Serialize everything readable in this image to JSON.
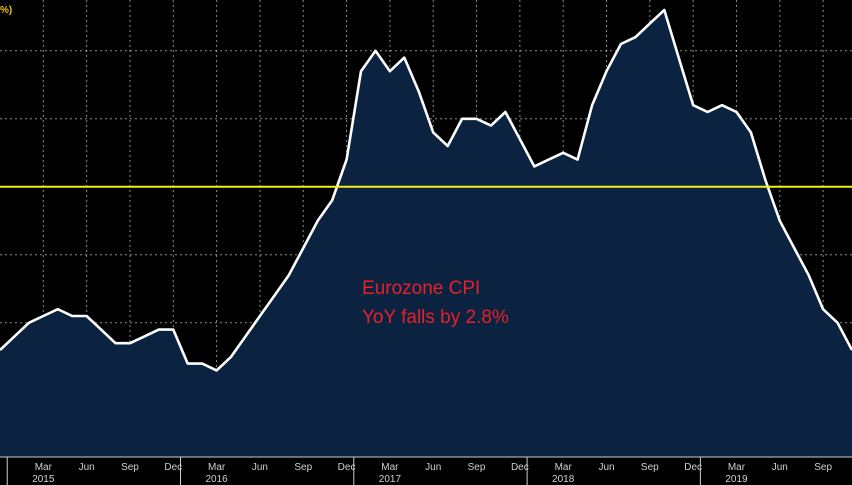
{
  "corner_label": "%)",
  "annotation": {
    "line1": "Eurozone CPI",
    "line2": "YoY falls by 2.8%"
  },
  "colors": {
    "background": "#000000",
    "area_fill": "#0b2340",
    "line": "#ffffff",
    "grid": "#ffffff",
    "reference_line": "#f2ef1a",
    "annotation": "#e8202a",
    "tick_label": "#d0d0d0"
  },
  "chart_data": {
    "type": "area",
    "title": "",
    "xlabel": "",
    "ylabel": "",
    "grid": true,
    "x_tick_labels": [
      {
        "month": "2015-03",
        "label": "Mar",
        "year": "2015"
      },
      {
        "month": "2015-06",
        "label": "Jun"
      },
      {
        "month": "2015-09",
        "label": "Sep"
      },
      {
        "month": "2015-12",
        "label": "Dec"
      },
      {
        "month": "2016-03",
        "label": "Mar",
        "year": "2016"
      },
      {
        "month": "2016-06",
        "label": "Jun"
      },
      {
        "month": "2016-09",
        "label": "Sep"
      },
      {
        "month": "2016-12",
        "label": "Dec"
      },
      {
        "month": "2017-03",
        "label": "Mar",
        "year": "2017"
      },
      {
        "month": "2017-06",
        "label": "Jun"
      },
      {
        "month": "2017-09",
        "label": "Sep"
      },
      {
        "month": "2017-12",
        "label": "Dec"
      },
      {
        "month": "2018-03",
        "label": "Mar",
        "year": "2018"
      },
      {
        "month": "2018-06",
        "label": "Jun"
      },
      {
        "month": "2018-09",
        "label": "Sep"
      },
      {
        "month": "2018-12",
        "label": "Dec"
      },
      {
        "month": "2019-03",
        "label": "Mar",
        "year": "2019"
      },
      {
        "month": "2019-06",
        "label": "Jun"
      },
      {
        "month": "2019-09",
        "label": "Sep"
      }
    ],
    "x_range": [
      "2014-12",
      "2019-11"
    ],
    "y_range": [
      -0.7,
      2.3
    ],
    "reference_line_y": 1.0,
    "series": [
      {
        "x": [
          "2014-12",
          "2015-01",
          "2015-02",
          "2015-03",
          "2015-04",
          "2015-05",
          "2015-06",
          "2015-07",
          "2015-08",
          "2015-09",
          "2015-10",
          "2015-11",
          "2015-12",
          "2016-01",
          "2016-02",
          "2016-03",
          "2016-04",
          "2016-05",
          "2016-06",
          "2016-07",
          "2016-08",
          "2016-09",
          "2016-10",
          "2016-11",
          "2016-12",
          "2017-01",
          "2017-02",
          "2017-03",
          "2017-04",
          "2017-05",
          "2017-06",
          "2017-07",
          "2017-08",
          "2017-09",
          "2017-10",
          "2017-11",
          "2017-12",
          "2018-01",
          "2018-02",
          "2018-03",
          "2018-04",
          "2018-05",
          "2018-06",
          "2018-07",
          "2018-08",
          "2018-09",
          "2018-10",
          "2018-11",
          "2018-12",
          "2019-01",
          "2019-02",
          "2019-03",
          "2019-04",
          "2019-05",
          "2019-06",
          "2019-07",
          "2019-08",
          "2019-09",
          "2019-10",
          "2019-11"
        ],
        "values": [
          -0.2,
          -0.1,
          0.0,
          0.05,
          0.1,
          0.05,
          0.05,
          -0.05,
          -0.15,
          -0.15,
          -0.1,
          -0.05,
          -0.05,
          -0.3,
          -0.3,
          -0.35,
          -0.25,
          -0.1,
          0.05,
          0.2,
          0.35,
          0.55,
          0.75,
          0.9,
          1.2,
          1.85,
          2.0,
          1.85,
          1.95,
          1.7,
          1.4,
          1.3,
          1.5,
          1.5,
          1.45,
          1.55,
          1.35,
          1.15,
          1.2,
          1.25,
          1.2,
          1.6,
          1.85,
          2.05,
          2.1,
          2.2,
          2.3,
          1.95,
          1.6,
          1.55,
          1.6,
          1.55,
          1.4,
          1.05,
          0.75,
          0.55,
          0.35,
          0.1,
          0.0,
          -0.2
        ]
      }
    ]
  }
}
